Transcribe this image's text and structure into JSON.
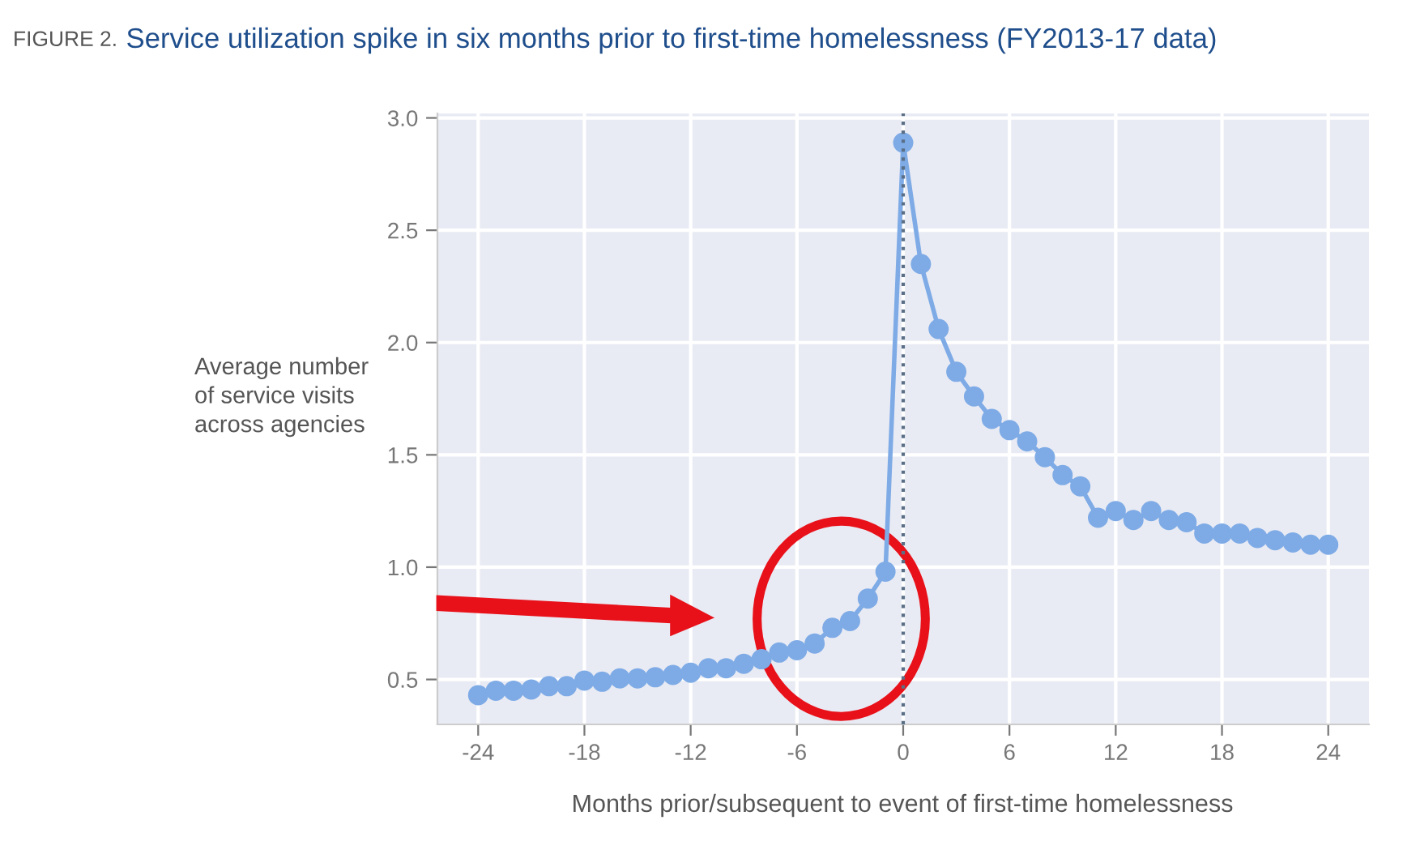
{
  "chart_data": {
    "type": "line",
    "title": "Service utilization spike in six months prior to first-time homelessness (FY2013-17 data)",
    "annotations": [
      "FIGURE 2."
    ],
    "xlabel": "Months prior/subsequent to event of first-time homelessness",
    "ylabel": "Average number\nof service visits\nacross agencies",
    "x": [
      -24,
      -23,
      -22,
      -21,
      -20,
      -19,
      -18,
      -17,
      -16,
      -15,
      -14,
      -13,
      -12,
      -11,
      -10,
      -9,
      -8,
      -7,
      -6,
      -5,
      -4,
      -3,
      -2,
      -1,
      0,
      1,
      2,
      3,
      4,
      5,
      6,
      7,
      8,
      9,
      10,
      11,
      12,
      13,
      14,
      15,
      16,
      17,
      18,
      19,
      20,
      21,
      22,
      23,
      24
    ],
    "series": [
      {
        "color": "#7eabe6",
        "values": [
          0.43,
          0.45,
          0.45,
          0.455,
          0.47,
          0.47,
          0.495,
          0.49,
          0.505,
          0.505,
          0.51,
          0.52,
          0.53,
          0.55,
          0.55,
          0.57,
          0.59,
          0.62,
          0.63,
          0.66,
          0.73,
          0.76,
          0.86,
          0.98,
          2.89,
          2.35,
          2.06,
          1.87,
          1.76,
          1.66,
          1.61,
          1.56,
          1.49,
          1.41,
          1.36,
          1.22,
          1.25,
          1.21,
          1.25,
          1.21,
          1.2,
          1.15,
          1.15,
          1.15,
          1.13,
          1.12,
          1.11,
          1.1,
          1.1
        ]
      }
    ],
    "xlim": [
      -26.3,
      26.3
    ],
    "ylim": [
      0.3,
      3.02
    ],
    "xticks": [
      -24,
      -18,
      -12,
      -6,
      0,
      6,
      12,
      18,
      24
    ],
    "yticks": [
      0.5,
      {
        "value": 1,
        "label": "1.0"
      },
      1.5,
      {
        "value": 2,
        "label": "2.0"
      },
      2.5,
      {
        "value": 3,
        "label": "3.0"
      }
    ],
    "ref_lines": [
      {
        "axis": "x",
        "value": 0,
        "color": "#5a6f86",
        "line_style": "dotted"
      }
    ],
    "grid": true,
    "marker": "circle",
    "line_style": "solid",
    "legend": false
  }
}
